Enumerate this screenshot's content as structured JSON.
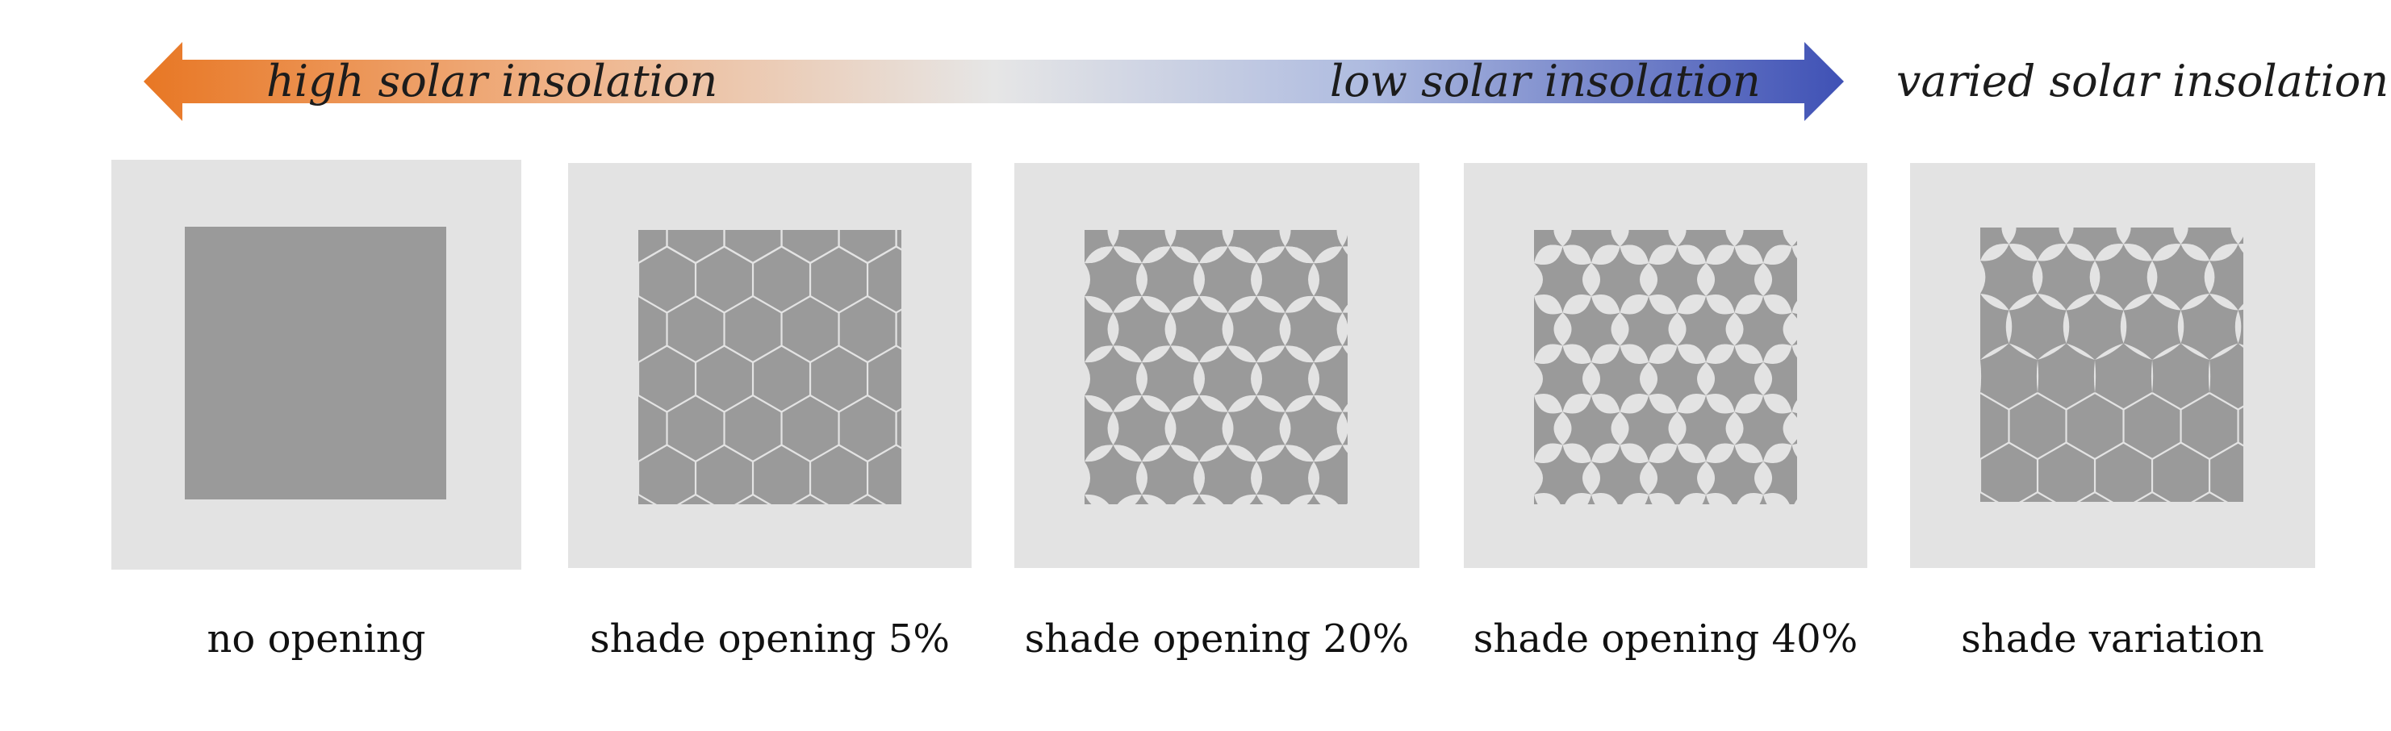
{
  "insolation_scale": {
    "left_label": "high solar insolation",
    "right_label": "low solar insolation",
    "separate_label": "varied solar insolation",
    "colors": {
      "high": "#e87724",
      "mid": "#e6e6e6",
      "low": "#3f51b5"
    }
  },
  "panels": [
    {
      "caption": "no opening",
      "pattern": "solid"
    },
    {
      "caption": "shade opening 5%",
      "pattern": "hexagonal-slits",
      "opening_percent": 5
    },
    {
      "caption": "shade opening 20%",
      "pattern": "lens-openings",
      "opening_percent": 20
    },
    {
      "caption": "shade opening 40%",
      "pattern": "lens-openings",
      "opening_percent": 40
    },
    {
      "caption": "shade variation",
      "pattern": "graded-openings"
    }
  ],
  "colors": {
    "frame": "#e3e3e3",
    "shade": "#9a9a9a",
    "opening": "#e3e3e3"
  }
}
